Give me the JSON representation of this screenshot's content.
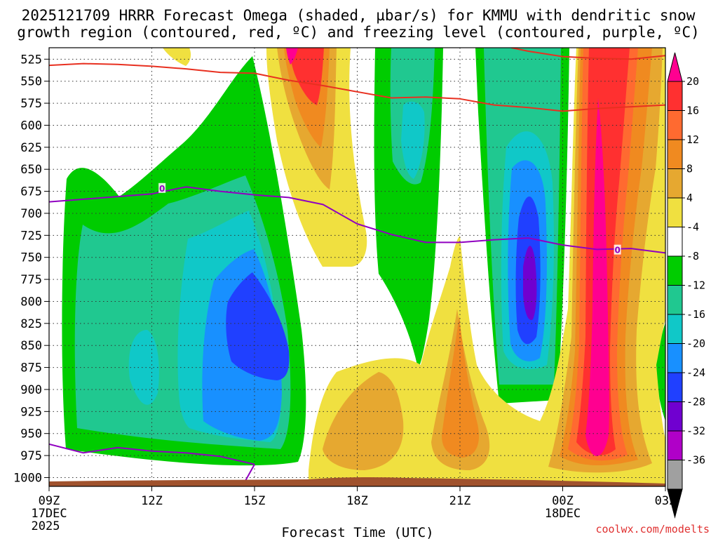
{
  "title": {
    "line1": "2025121709 HRRR Forecast Omega (shaded, µbar/s) for KMMU with dendritic snow",
    "line2": "growth region (contoured, red, ºC) and freezing level (contoured, purple, ºC)"
  },
  "credit": "coolwx.com/modelts",
  "chart_data": {
    "type": "heatmap",
    "title": "2025121709 HRRR Forecast Omega (shaded, µbar/s) for KMMU with dendritic snow growth region (contoured, red, ºC) and freezing level (contoured, purple, ºC)",
    "xlabel": "Forecast Time (UTC)",
    "ylabel": "",
    "x_range_hours": [
      0,
      18
    ],
    "y_range_hpa": [
      1010,
      512
    ],
    "y_ticks": [
      525,
      550,
      575,
      600,
      625,
      650,
      675,
      700,
      725,
      750,
      775,
      800,
      825,
      850,
      875,
      900,
      925,
      950,
      975,
      1000
    ],
    "x_ticks": [
      {
        "hour": 0,
        "label": "09Z",
        "sub1": "17DEC",
        "sub2": "2025"
      },
      {
        "hour": 3,
        "label": "12Z",
        "sub1": "",
        "sub2": ""
      },
      {
        "hour": 6,
        "label": "15Z",
        "sub1": "",
        "sub2": ""
      },
      {
        "hour": 9,
        "label": "18Z",
        "sub1": "",
        "sub2": ""
      },
      {
        "hour": 12,
        "label": "21Z",
        "sub1": "",
        "sub2": ""
      },
      {
        "hour": 15,
        "label": "00Z",
        "sub1": "18DEC",
        "sub2": ""
      },
      {
        "hour": 18,
        "label": "03Z",
        "sub1": "",
        "sub2": ""
      }
    ],
    "grid": true,
    "colorbar": {
      "placement": "right",
      "labels": [
        "20",
        "16",
        "12",
        "8",
        "4",
        "-4",
        "-8",
        "-12",
        "-16",
        "-20",
        "-24",
        "-28",
        "-32",
        "-36"
      ],
      "colors": [
        "#ff0090",
        "#ff3030",
        "#ff6a30",
        "#f08a20",
        "#e6a830",
        "#f0e040",
        "#ffffff",
        "#00cc00",
        "#20c890",
        "#10c8c8",
        "#1890ff",
        "#2040ff",
        "#7000d0",
        "#b000c8",
        "#a0a0a0",
        "#000000"
      ]
    },
    "omega_centers": [
      {
        "hour": 6.4,
        "p": 800,
        "value": -22,
        "label": "ascent maximum near 15Z"
      },
      {
        "hour": 14.5,
        "p": 740,
        "value": -26,
        "label": "ascent maximum near 23Z"
      },
      {
        "hour": 16.2,
        "p": 920,
        "value": 22,
        "label": "descent maximum near 01Z"
      },
      {
        "hour": 12.5,
        "p": 945,
        "value": 13,
        "label": "descent maximum near 21Z"
      },
      {
        "hour": 7.8,
        "p": 530,
        "value": 17,
        "label": "descent maximum near 16Z"
      }
    ],
    "series": [
      {
        "name": "dendritic snow growth region (red)",
        "color": "#e83020",
        "segments": [
          {
            "x": [
              0,
              1,
              2,
              3,
              4,
              5,
              6,
              7,
              8,
              9,
              10,
              11,
              12,
              13,
              14,
              15,
              16,
              17,
              18
            ],
            "y": [
              532,
              530,
              531,
              533,
              536,
              540,
              541,
              549,
              555,
              562,
              569,
              568,
              570,
              577,
              580,
              584,
              581,
              579,
              577
            ]
          },
          {
            "x": [
              13.5,
              14,
              15,
              16,
              17,
              18
            ],
            "y": [
              512,
              516,
              522,
              524,
              525,
              521
            ]
          }
        ]
      },
      {
        "name": "freezing level (purple)",
        "color": "#9000c0",
        "segments": [
          {
            "x": [
              0,
              1,
              2,
              3,
              4,
              5,
              6,
              7,
              8,
              9,
              10,
              11,
              12,
              13,
              14,
              15,
              16,
              17,
              18
            ],
            "y": [
              687,
              684,
              681,
              678,
              670,
              675,
              679,
              682,
              690,
              712,
              724,
              733,
              733,
              730,
              728,
              736,
              741,
              740,
              745
            ]
          },
          {
            "x": [
              0,
              1,
              2,
              3,
              4,
              5,
              6
            ],
            "y": [
              962,
              972,
              966,
              970,
              972,
              976,
              985
            ]
          },
          {
            "x": [
              5.7,
              6
            ],
            "y": [
              1006,
              985
            ]
          }
        ],
        "labels": [
          {
            "hour": 3.3,
            "p": 672,
            "text": "0"
          },
          {
            "hour": 16.6,
            "p": 742,
            "text": "0"
          }
        ]
      }
    ],
    "terrain_color": "#a0522d"
  }
}
